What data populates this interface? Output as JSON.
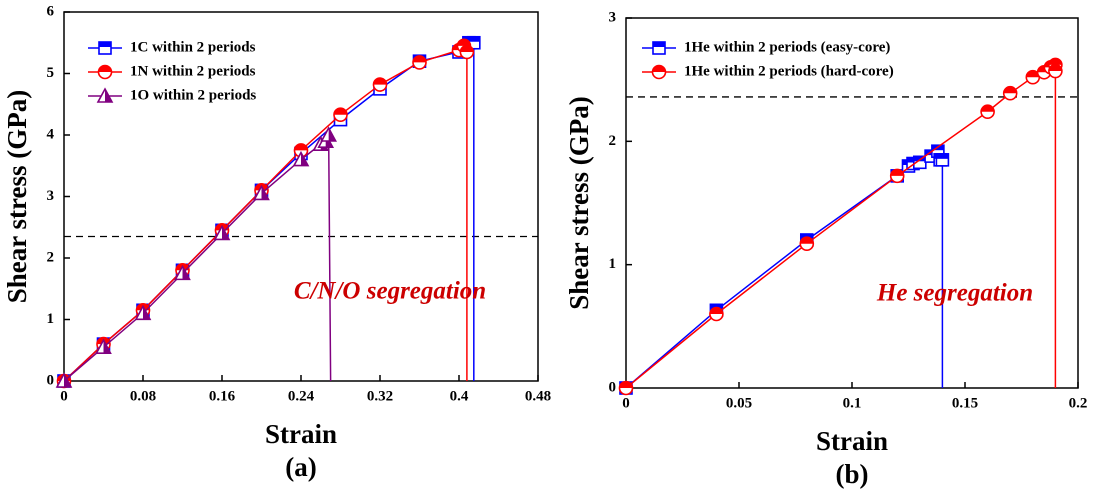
{
  "chart_data": [
    {
      "type": "line",
      "panel_label": "(a)",
      "x_label": "Strain",
      "y_label": "Shear stress (GPa)",
      "annotation": "C/N/O segregation",
      "hline": 2.35,
      "xlim": [
        0,
        0.48
      ],
      "xticks": [
        0,
        0.08,
        0.16,
        0.24,
        0.32,
        0.4,
        0.48
      ],
      "ylim": [
        0,
        6
      ],
      "yticks": [
        0,
        1,
        2,
        3,
        4,
        5,
        6
      ],
      "series": [
        {
          "name": "1C within 2 periods",
          "color": "#0000ff",
          "marker": "square",
          "x": [
            0,
            0.04,
            0.08,
            0.12,
            0.16,
            0.2,
            0.24,
            0.28,
            0.32,
            0.36,
            0.4,
            0.41,
            0.415,
            0.415
          ],
          "values": [
            0,
            0.6,
            1.15,
            1.8,
            2.45,
            3.1,
            3.7,
            4.25,
            4.75,
            5.2,
            5.35,
            5.5,
            5.5,
            0
          ]
        },
        {
          "name": "1N within 2 periods",
          "color": "#ff0000",
          "marker": "circle",
          "x": [
            0,
            0.04,
            0.08,
            0.12,
            0.16,
            0.2,
            0.24,
            0.28,
            0.32,
            0.36,
            0.4,
            0.405,
            0.408,
            0.408
          ],
          "values": [
            0,
            0.6,
            1.15,
            1.8,
            2.45,
            3.1,
            3.75,
            4.33,
            4.82,
            5.18,
            5.38,
            5.45,
            5.35,
            0
          ]
        },
        {
          "name": "1O within 2 periods",
          "color": "#800080",
          "marker": "triangle",
          "x": [
            0,
            0.04,
            0.08,
            0.12,
            0.16,
            0.2,
            0.24,
            0.26,
            0.265,
            0.268,
            0.27
          ],
          "values": [
            0,
            0.55,
            1.1,
            1.75,
            2.4,
            3.05,
            3.6,
            3.85,
            3.9,
            4.0,
            0
          ]
        }
      ]
    },
    {
      "type": "line",
      "panel_label": "(b)",
      "x_label": "Strain",
      "y_label": "Shear stress (GPa)",
      "annotation": "He segregation",
      "hline": 2.36,
      "xlim": [
        0,
        0.2
      ],
      "xticks": [
        0,
        0.05,
        0.1,
        0.15,
        0.2
      ],
      "ylim": [
        0,
        3
      ],
      "yticks": [
        0,
        1,
        2,
        3
      ],
      "series": [
        {
          "name": "1He within 2 periods (easy-core)",
          "color": "#0000ff",
          "marker": "square",
          "x": [
            0,
            0.04,
            0.08,
            0.12,
            0.125,
            0.127,
            0.13,
            0.135,
            0.138,
            0.139,
            0.14,
            0.14
          ],
          "values": [
            0,
            0.63,
            1.2,
            1.72,
            1.8,
            1.82,
            1.83,
            1.88,
            1.92,
            1.85,
            1.85,
            0
          ]
        },
        {
          "name": "1He within 2 periods (hard-core)",
          "color": "#ff0000",
          "marker": "circle",
          "x": [
            0,
            0.04,
            0.08,
            0.12,
            0.16,
            0.17,
            0.18,
            0.185,
            0.188,
            0.19,
            0.19,
            0.19
          ],
          "values": [
            0,
            0.6,
            1.17,
            1.72,
            2.24,
            2.39,
            2.52,
            2.56,
            2.6,
            2.62,
            2.57,
            0
          ]
        }
      ]
    }
  ]
}
